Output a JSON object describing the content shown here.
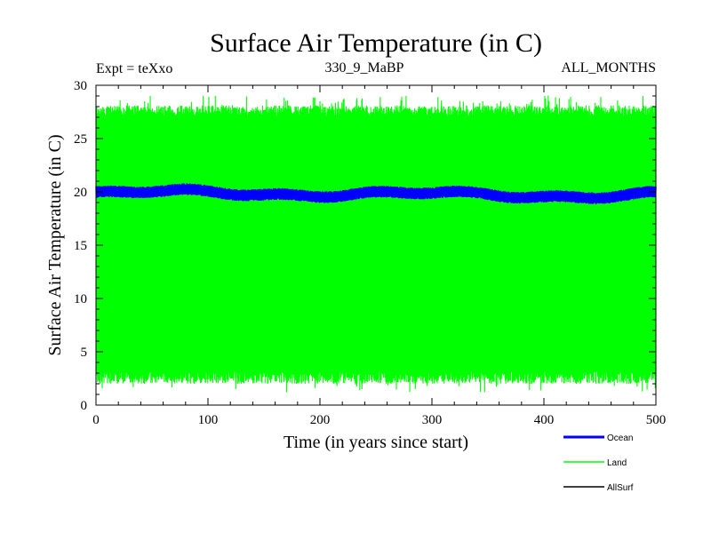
{
  "chart_data": {
    "type": "line",
    "title": "Surface Air Temperature (in C)",
    "subtitle_left": "Expt = teXxo",
    "subtitle_center": "330_9_MaBP",
    "subtitle_right": "ALL_MONTHS",
    "xlabel": "Time (in years since start)",
    "ylabel": "Surface Air Temperature (in C)",
    "xlim": [
      0,
      500
    ],
    "ylim": [
      0,
      30
    ],
    "xticks": [
      0,
      100,
      200,
      300,
      400,
      500
    ],
    "yticks": [
      0,
      5,
      10,
      15,
      20,
      25,
      30
    ],
    "legend_position": "bottom-right",
    "series": [
      {
        "name": "Ocean",
        "color": "#0000ff",
        "annual_mean_approx": 19.8,
        "seasonal_amplitude_approx": 0.4,
        "description_range": [
          18.8,
          20.6
        ]
      },
      {
        "name": "Land",
        "color": "#00ff00",
        "annual_mean_approx": 15.3,
        "seasonal_amplitude_approx": 13,
        "description_range": [
          1.0,
          29.3
        ]
      },
      {
        "name": "AllSurf",
        "color": "#000000",
        "visible_in_plot": false
      }
    ]
  }
}
